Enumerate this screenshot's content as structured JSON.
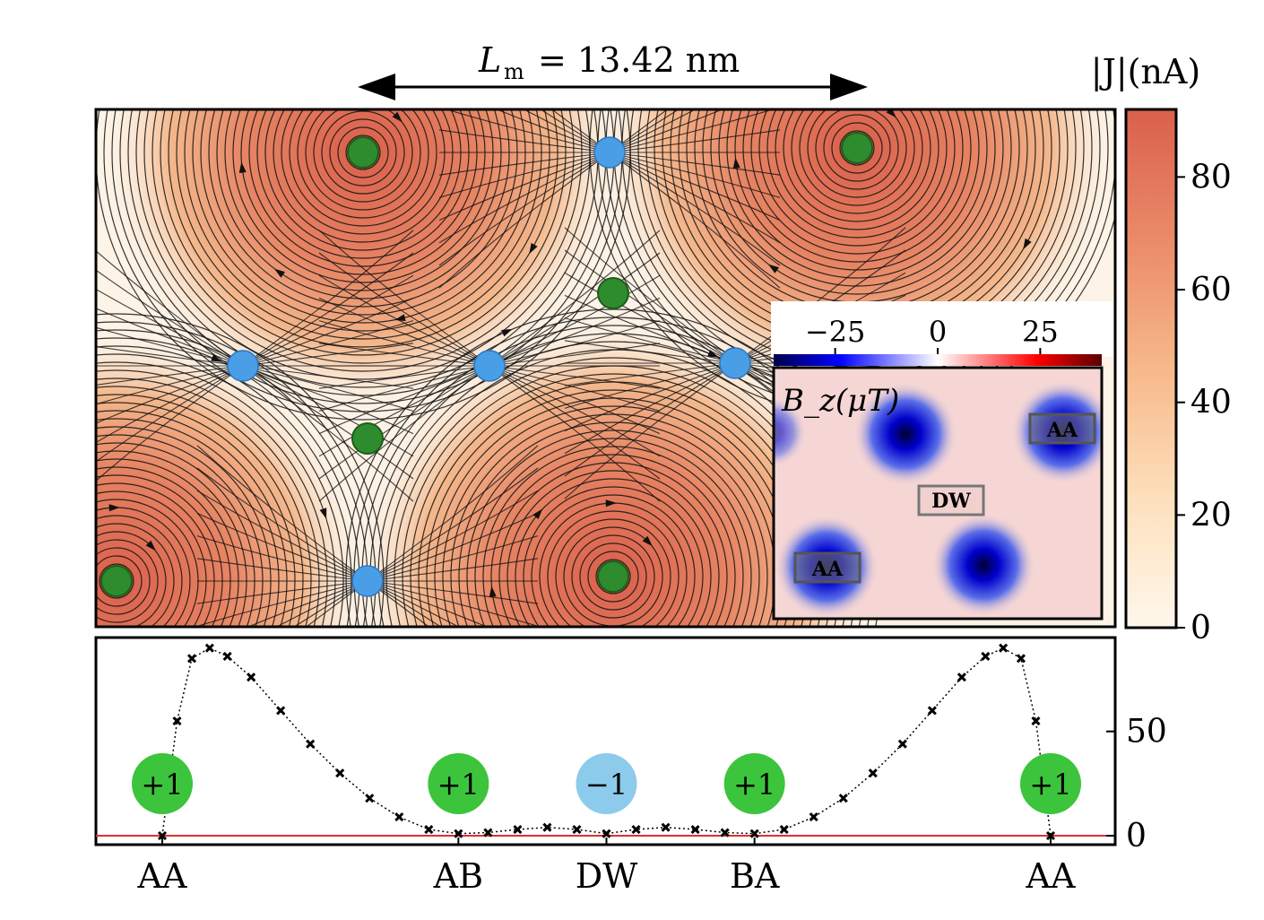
{
  "header": {
    "period_label": "L",
    "period_subscript": "m",
    "period_value": "= 13.42 nm"
  },
  "colorbar": {
    "label": "|J|(nA)",
    "ticks": [
      "0",
      "20",
      "40",
      "60",
      "80"
    ],
    "tick_values": [
      0,
      20,
      40,
      60,
      80
    ],
    "range": [
      0,
      92
    ]
  },
  "inset": {
    "label": "B_z(μT)",
    "cbar_ticks": [
      "−25",
      "0",
      "25"
    ],
    "cbar_tick_values": [
      -25,
      0,
      25
    ],
    "cbar_range": [
      -40,
      40
    ],
    "tags": [
      "AA",
      "DW",
      "AA"
    ],
    "colors": {
      "negative": "#0000dd",
      "positive": "#cc0000",
      "background": "#f5d6d4"
    }
  },
  "vortex_map": {
    "colors": {
      "plus_one": "#2e8b2e",
      "minus_one": "#4a9ee6",
      "high": "#d9604c",
      "low": "#fdf3e6"
    }
  },
  "profile": {
    "x_ticks": [
      "AA",
      "AB",
      "DW",
      "BA",
      "AA"
    ],
    "y_ticks": [
      "0",
      "50"
    ],
    "badges": [
      {
        "text": "+1",
        "kind": "plus"
      },
      {
        "text": "+1",
        "kind": "plus"
      },
      {
        "text": "−1",
        "kind": "minus"
      },
      {
        "text": "+1",
        "kind": "plus"
      },
      {
        "text": "+1",
        "kind": "plus"
      }
    ],
    "colors": {
      "plus": "#3cc43c",
      "minus": "#8ccbeb",
      "baseline": "#e03030"
    }
  },
  "chart_data": {
    "type": "line",
    "x_positions": [
      "AA",
      "AB",
      "DW",
      "BA",
      "AA"
    ],
    "x_tick_values": [
      0,
      1,
      1.5,
      2,
      3
    ],
    "ylim": [
      0,
      92
    ],
    "y_ticks": [
      0,
      50
    ],
    "series": [
      {
        "x": [
          0,
          0.05,
          0.1,
          0.16,
          0.22,
          0.3,
          0.4,
          0.5,
          0.6,
          0.7,
          0.8,
          0.9,
          1.0,
          1.1,
          1.2,
          1.3,
          1.4,
          1.5,
          1.6,
          1.7,
          1.8,
          1.9,
          2.0,
          2.1,
          2.2,
          2.3,
          2.4,
          2.5,
          2.6,
          2.7,
          2.78,
          2.84,
          2.9,
          2.95,
          3.0
        ],
        "y": [
          0,
          55,
          85,
          90,
          86,
          76,
          60,
          44,
          30,
          18,
          9,
          3,
          1,
          1.5,
          3,
          4,
          3,
          1,
          3,
          4,
          3,
          1.5,
          1,
          3,
          9,
          18,
          30,
          44,
          60,
          76,
          86,
          90,
          85,
          55,
          0
        ]
      }
    ],
    "reference_line_y": 0
  }
}
